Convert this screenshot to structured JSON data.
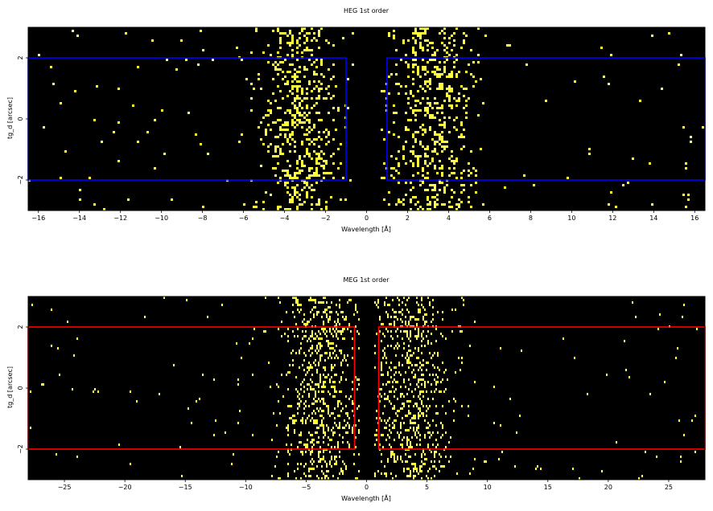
{
  "chart_data": [
    {
      "type": "heatmap",
      "title": "HEG 1st order",
      "xlabel": "Wavelength [Å]",
      "ylabel": "tg_d [arcsec]",
      "xlim": [
        -16.5,
        16.5
      ],
      "ylim": [
        -3,
        3
      ],
      "xticks": [
        -16,
        -14,
        -12,
        -10,
        -8,
        -6,
        -4,
        -2,
        0,
        2,
        4,
        6,
        8,
        10,
        12,
        14,
        16
      ],
      "yticks": [
        -2,
        0,
        2
      ],
      "background_color": "#000000",
      "event_color": "#ffff40",
      "region_color": "#0000ff",
      "regions": [
        {
          "x": [
            -16.5,
            -1.0
          ],
          "y": [
            -2.0,
            2.0
          ]
        },
        {
          "x": [
            1.0,
            16.5
          ],
          "y": [
            -2.0,
            2.0
          ]
        }
      ],
      "clusters": [
        {
          "center": -3.3,
          "width": 1.1,
          "density": 0.5
        },
        {
          "center": 3.2,
          "width": 1.1,
          "density": 0.5
        }
      ],
      "background_rate": 0.01
    },
    {
      "type": "heatmap",
      "title": "MEG 1st order",
      "xlabel": "Wavelength [Å]",
      "ylabel": "tg_d [arcsec]",
      "xlim": [
        -28,
        28
      ],
      "ylim": [
        -3,
        3
      ],
      "xticks": [
        -25,
        -20,
        -15,
        -10,
        -5,
        0,
        5,
        10,
        15,
        20,
        25
      ],
      "yticks": [
        -2,
        0,
        2
      ],
      "background_color": "#000000",
      "event_color": "#ffff40",
      "region_color": "#ff0000",
      "regions": [
        {
          "x": [
            -28,
            -1.0
          ],
          "y": [
            -2.0,
            2.0
          ]
        },
        {
          "x": [
            1.0,
            28
          ],
          "y": [
            -2.0,
            2.0
          ]
        }
      ],
      "clusters": [
        {
          "center": -3.5,
          "width": 1.8,
          "density": 0.45
        },
        {
          "center": 3.6,
          "width": 1.8,
          "density": 0.45
        }
      ],
      "background_rate": 0.008
    }
  ]
}
